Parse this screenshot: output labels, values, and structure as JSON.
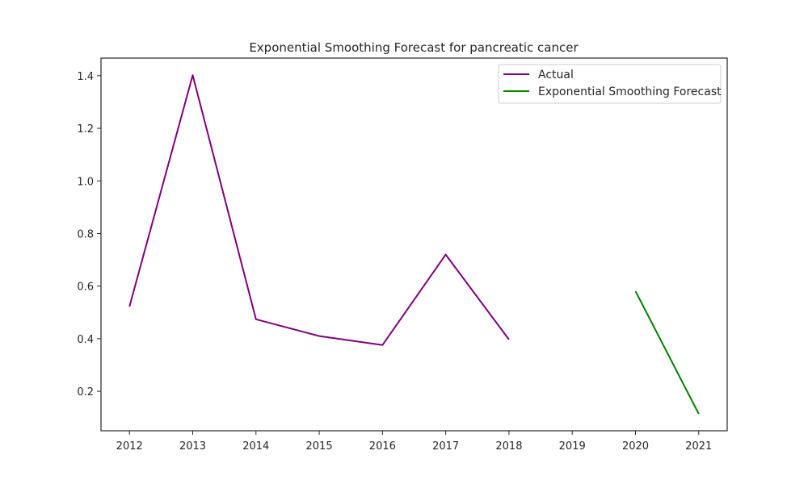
{
  "chart_data": {
    "type": "line",
    "title": "Exponential Smoothing Forecast for pancreatic cancer",
    "xlabel": "",
    "ylabel": "",
    "x_ticks": [
      2012,
      2013,
      2014,
      2015,
      2016,
      2017,
      2018,
      2019,
      2020,
      2021
    ],
    "y_ticks": [
      0.2,
      0.4,
      0.6,
      0.8,
      1.0,
      1.2,
      1.4
    ],
    "y_tick_labels": [
      "0.2",
      "0.4",
      "0.6",
      "0.8",
      "1.0",
      "1.2",
      "1.4"
    ],
    "xlim": [
      2011.55,
      2021.45
    ],
    "ylim": [
      0.05,
      1.467
    ],
    "grid": false,
    "legend_position": "top-right",
    "series": [
      {
        "name": "Actual",
        "color": "#800080",
        "x": [
          2012,
          2013,
          2014,
          2015,
          2016,
          2017,
          2018
        ],
        "y": [
          0.522,
          1.402,
          0.474,
          0.41,
          0.376,
          0.72,
          0.397
        ]
      },
      {
        "name": "Exponential Smoothing Forecast",
        "color": "#008000",
        "x": [
          2020,
          2021
        ],
        "y": [
          0.581,
          0.114
        ]
      }
    ]
  }
}
